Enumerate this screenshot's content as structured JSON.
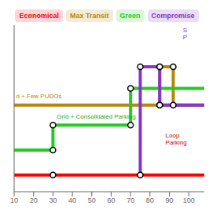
{
  "chart_data": {
    "type": "line",
    "xlim": [
      10,
      108
    ],
    "ylim": [
      0,
      10
    ],
    "xticks": [
      10,
      20,
      30,
      40,
      50,
      60,
      70,
      80,
      90,
      100
    ],
    "tick_labels": "x",
    "legend": "top",
    "series": [
      {
        "name": "Economical",
        "color": "#ff0000",
        "x": [
          10,
          108
        ],
        "values": [
          1.0,
          1.0
        ],
        "nodes_x": [
          30,
          75
        ],
        "nodes_values": [
          1.0,
          1.0
        ]
      },
      {
        "name": "Max Transit",
        "color": "#b8860b",
        "x": [
          10,
          108,
          85,
          85,
          85,
          92,
          92
        ],
        "values": [
          5.2,
          5.2,
          null,
          5.2,
          7.5,
          7.5,
          5.2
        ],
        "nodes_x": [
          85,
          85,
          92,
          92
        ],
        "nodes_values": [
          5.2,
          7.5,
          7.5,
          5.2
        ]
      },
      {
        "name": "Green",
        "color": "#22cc22",
        "x": [
          10,
          30,
          30,
          70,
          70,
          108
        ],
        "values": [
          2.5,
          2.5,
          4.0,
          4.0,
          6.2,
          6.2
        ],
        "nodes_x": [
          30,
          30,
          70,
          70
        ],
        "nodes_values": [
          2.5,
          4.0,
          4.0,
          6.2
        ]
      },
      {
        "name": "Compromise",
        "color": "#8833cc",
        "x": [
          75,
          75,
          85,
          85,
          108
        ],
        "values": [
          1.0,
          7.5,
          7.5,
          5.2,
          5.2
        ],
        "nodes_x": [
          75,
          85,
          85
        ],
        "nodes_values": [
          7.5,
          7.5,
          5.2
        ]
      }
    ],
    "annotations": [
      {
        "text": "d + Few PUDOs",
        "x": 11,
        "y": 5.75,
        "color": "#b8860b"
      },
      {
        "text": "Grid + Consolidated Parking",
        "x": 32,
        "y": 4.55,
        "color": "#22aa22"
      },
      {
        "text": "Loop\nParking",
        "x": 88,
        "y": 3.2,
        "color": "#cc0000"
      },
      {
        "text": "S\nP",
        "x": 97,
        "y": 9.5,
        "color": "#8833cc"
      }
    ]
  }
}
